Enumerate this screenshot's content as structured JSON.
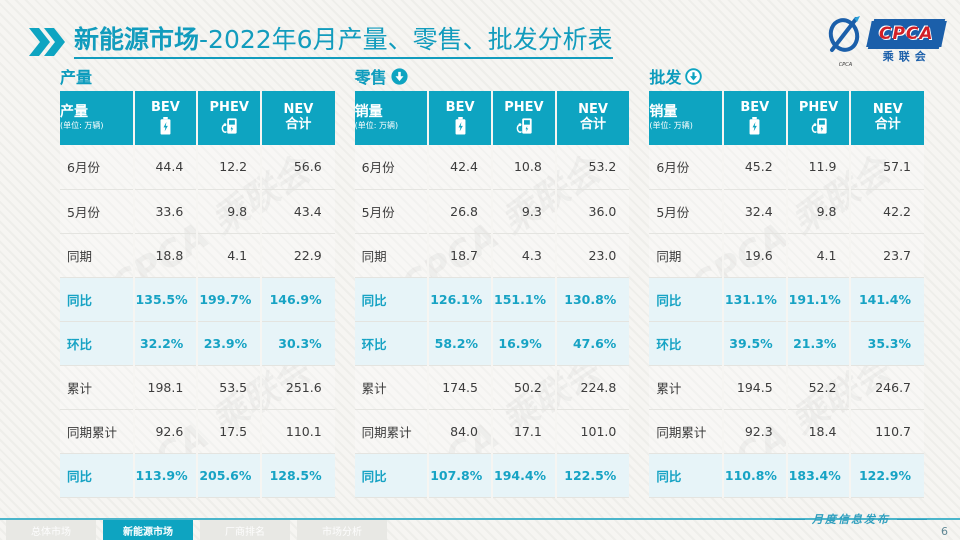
{
  "title": {
    "prefix": "新能源市场",
    "rest": "-2022年6月产量、零售、批发分析表"
  },
  "logo": {
    "cpca": "CPCA",
    "org": "乘联会",
    "swirl_text": "CPCA"
  },
  "watermark_text": "CPCA 乘联会",
  "unit_note": "(单位: 万辆)",
  "col_headers": {
    "bev": "BEV",
    "phev": "PHEV",
    "nev_line1": "NEV",
    "nev_line2": "合计"
  },
  "tables": [
    {
      "id": "production",
      "section_label": "产量",
      "arrow": null,
      "first_col": "产量",
      "rows": [
        {
          "label": "6月份",
          "values": [
            "44.4",
            "12.2",
            "56.6"
          ],
          "highlight": false
        },
        {
          "label": "5月份",
          "values": [
            "33.6",
            "9.8",
            "43.4"
          ],
          "highlight": false
        },
        {
          "label": "同期",
          "values": [
            "18.8",
            "4.1",
            "22.9"
          ],
          "highlight": false
        },
        {
          "label": "同比",
          "values": [
            "135.5%",
            "199.7%",
            "146.9%"
          ],
          "highlight": true
        },
        {
          "label": "环比",
          "values": [
            "32.2%",
            "23.9%",
            "30.3%"
          ],
          "highlight": true
        },
        {
          "label": "累计",
          "values": [
            "198.1",
            "53.5",
            "251.6"
          ],
          "highlight": false
        },
        {
          "label": "同期累计",
          "values": [
            "92.6",
            "17.5",
            "110.1"
          ],
          "highlight": false
        },
        {
          "label": "同比",
          "values": [
            "113.9%",
            "205.6%",
            "128.5%"
          ],
          "highlight": true
        }
      ]
    },
    {
      "id": "retail",
      "section_label": "零售",
      "arrow": "filled",
      "first_col": "销量",
      "rows": [
        {
          "label": "6月份",
          "values": [
            "42.4",
            "10.8",
            "53.2"
          ],
          "highlight": false
        },
        {
          "label": "5月份",
          "values": [
            "26.8",
            "9.3",
            "36.0"
          ],
          "highlight": false
        },
        {
          "label": "同期",
          "values": [
            "18.7",
            "4.3",
            "23.0"
          ],
          "highlight": false
        },
        {
          "label": "同比",
          "values": [
            "126.1%",
            "151.1%",
            "130.8%"
          ],
          "highlight": true
        },
        {
          "label": "环比",
          "values": [
            "58.2%",
            "16.9%",
            "47.6%"
          ],
          "highlight": true
        },
        {
          "label": "累计",
          "values": [
            "174.5",
            "50.2",
            "224.8"
          ],
          "highlight": false
        },
        {
          "label": "同期累计",
          "values": [
            "84.0",
            "17.1",
            "101.0"
          ],
          "highlight": false
        },
        {
          "label": "同比",
          "values": [
            "107.8%",
            "194.4%",
            "122.5%"
          ],
          "highlight": true
        }
      ]
    },
    {
      "id": "wholesale",
      "section_label": "批发",
      "arrow": "outline",
      "first_col": "销量",
      "rows": [
        {
          "label": "6月份",
          "values": [
            "45.2",
            "11.9",
            "57.1"
          ],
          "highlight": false
        },
        {
          "label": "5月份",
          "values": [
            "32.4",
            "9.8",
            "42.2"
          ],
          "highlight": false
        },
        {
          "label": "同期",
          "values": [
            "19.6",
            "4.1",
            "23.7"
          ],
          "highlight": false
        },
        {
          "label": "同比",
          "values": [
            "131.1%",
            "191.1%",
            "141.4%"
          ],
          "highlight": true
        },
        {
          "label": "环比",
          "values": [
            "39.5%",
            "21.3%",
            "35.3%"
          ],
          "highlight": true
        },
        {
          "label": "累计",
          "values": [
            "194.5",
            "52.2",
            "246.7"
          ],
          "highlight": false
        },
        {
          "label": "同期累计",
          "values": [
            "92.3",
            "18.4",
            "110.7"
          ],
          "highlight": false
        },
        {
          "label": "同比",
          "values": [
            "110.8%",
            "183.4%",
            "122.9%"
          ],
          "highlight": true
        }
      ]
    }
  ],
  "colors": {
    "accent_teal": "#0ea4c1",
    "highlight_bg": "#e7f4f8",
    "logo_blue": "#1b5faa",
    "logo_red": "#d22027"
  },
  "footer": {
    "tabs": [
      {
        "label": "总体市场",
        "active": false
      },
      {
        "label": "新能源市场",
        "active": true
      },
      {
        "label": "厂商排名",
        "active": false
      },
      {
        "label": "市场分析",
        "active": false
      }
    ],
    "note": "月度信息发布",
    "page": "6"
  }
}
